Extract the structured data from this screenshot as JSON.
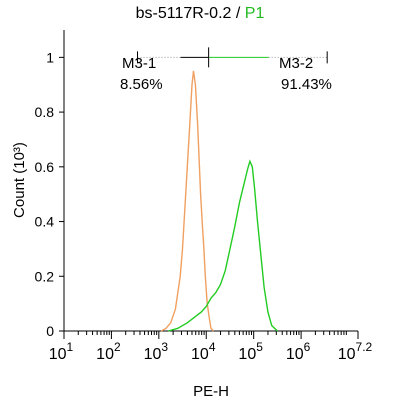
{
  "title": {
    "sample": "bs-5117R-0.2",
    "separator": " / ",
    "gate": "P1"
  },
  "colors": {
    "control": "#f0a060",
    "sample": "#22cc22",
    "gate_title": "#22bb22",
    "marker_dotted": "#999999"
  },
  "chart_data": {
    "type": "line",
    "title": "bs-5117R-0.2 / P1",
    "xlabel": "PE-H",
    "ylabel": "Count (10³)",
    "x_scale": "log10",
    "xlim_log10": [
      1,
      7.2
    ],
    "ylim": [
      0,
      1.1
    ],
    "x_ticks": [
      {
        "base": "10",
        "exp": "1",
        "log10": 1
      },
      {
        "base": "10",
        "exp": "2",
        "log10": 2
      },
      {
        "base": "10",
        "exp": "3",
        "log10": 3
      },
      {
        "base": "10",
        "exp": "4",
        "log10": 4
      },
      {
        "base": "10",
        "exp": "5",
        "log10": 5
      },
      {
        "base": "10",
        "exp": "6",
        "log10": 6
      },
      {
        "base": "10",
        "exp": "7.2",
        "log10": 7.2
      }
    ],
    "y_ticks": [
      "0",
      "0.2",
      "0.4",
      "0.6",
      "0.8",
      "1"
    ],
    "y_tick_values": [
      0,
      0.2,
      0.4,
      0.6,
      0.8,
      1.0
    ],
    "series": [
      {
        "key": "control",
        "points_log10x": [
          [
            3.05,
            0
          ],
          [
            3.15,
            0.01
          ],
          [
            3.25,
            0.03
          ],
          [
            3.35,
            0.08
          ],
          [
            3.45,
            0.2
          ],
          [
            3.5,
            0.3
          ],
          [
            3.55,
            0.45
          ],
          [
            3.6,
            0.6
          ],
          [
            3.65,
            0.75
          ],
          [
            3.7,
            0.9
          ],
          [
            3.73,
            0.95
          ],
          [
            3.77,
            0.9
          ],
          [
            3.82,
            0.75
          ],
          [
            3.88,
            0.5
          ],
          [
            3.92,
            0.38
          ],
          [
            3.95,
            0.3
          ],
          [
            3.98,
            0.2
          ],
          [
            4.02,
            0.1
          ],
          [
            4.07,
            0.04
          ],
          [
            4.1,
            0.01
          ],
          [
            4.15,
            0
          ]
        ]
      },
      {
        "key": "sample",
        "points_log10x": [
          [
            3.2,
            0
          ],
          [
            3.4,
            0.01
          ],
          [
            3.6,
            0.03
          ],
          [
            3.75,
            0.05
          ],
          [
            3.9,
            0.07
          ],
          [
            4.0,
            0.09
          ],
          [
            4.1,
            0.12
          ],
          [
            4.2,
            0.14
          ],
          [
            4.3,
            0.17
          ],
          [
            4.4,
            0.22
          ],
          [
            4.5,
            0.3
          ],
          [
            4.6,
            0.38
          ],
          [
            4.7,
            0.47
          ],
          [
            4.8,
            0.54
          ],
          [
            4.87,
            0.59
          ],
          [
            4.92,
            0.62
          ],
          [
            4.97,
            0.6
          ],
          [
            5.02,
            0.52
          ],
          [
            5.08,
            0.4
          ],
          [
            5.15,
            0.28
          ],
          [
            5.22,
            0.16
          ],
          [
            5.3,
            0.07
          ],
          [
            5.38,
            0.02
          ],
          [
            5.5,
            0
          ]
        ]
      }
    ],
    "markers": [
      {
        "label": "M3-1",
        "percent": "8.56%"
      },
      {
        "label": "M3-2",
        "percent": "91.43%"
      }
    ],
    "gate_range_log10": [
      2.55,
      6.55
    ],
    "gate_split_log10": 4.05,
    "gate_y": 1.0
  }
}
